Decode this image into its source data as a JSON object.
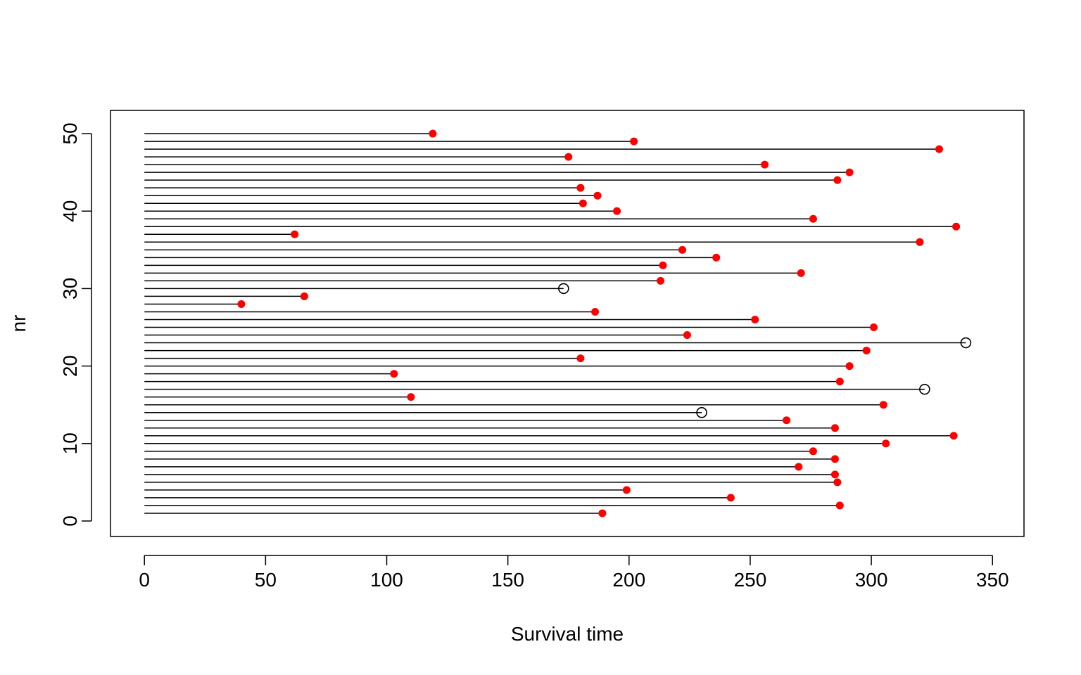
{
  "chart_data": {
    "type": "scatter",
    "title": "",
    "xlabel": "Survival time",
    "ylabel": "nr",
    "xlim": [
      -14,
      363
    ],
    "ylim": [
      -2,
      53
    ],
    "xticks": [
      0,
      50,
      100,
      150,
      200,
      250,
      300,
      350
    ],
    "yticks": [
      0,
      10,
      20,
      30,
      40,
      50
    ],
    "grid": false,
    "legend": "none",
    "colors": {
      "event": "#ff0000",
      "censored": "#000000",
      "line": "#000000"
    },
    "series": [
      {
        "marker": "filled-circle",
        "points": [
          {
            "nr": 1,
            "time": 189
          },
          {
            "nr": 2,
            "time": 287
          },
          {
            "nr": 3,
            "time": 242
          },
          {
            "nr": 4,
            "time": 199
          },
          {
            "nr": 5,
            "time": 286
          },
          {
            "nr": 6,
            "time": 285
          },
          {
            "nr": 7,
            "time": 270
          },
          {
            "nr": 8,
            "time": 285
          },
          {
            "nr": 9,
            "time": 276
          },
          {
            "nr": 10,
            "time": 306
          },
          {
            "nr": 11,
            "time": 334
          },
          {
            "nr": 12,
            "time": 285
          },
          {
            "nr": 13,
            "time": 265
          },
          {
            "nr": 15,
            "time": 305
          },
          {
            "nr": 16,
            "time": 110
          },
          {
            "nr": 18,
            "time": 287
          },
          {
            "nr": 19,
            "time": 103
          },
          {
            "nr": 20,
            "time": 291
          },
          {
            "nr": 21,
            "time": 180
          },
          {
            "nr": 22,
            "time": 298
          },
          {
            "nr": 24,
            "time": 224
          },
          {
            "nr": 25,
            "time": 301
          },
          {
            "nr": 26,
            "time": 252
          },
          {
            "nr": 27,
            "time": 186
          },
          {
            "nr": 28,
            "time": 40
          },
          {
            "nr": 29,
            "time": 66
          },
          {
            "nr": 31,
            "time": 213
          },
          {
            "nr": 32,
            "time": 271
          },
          {
            "nr": 33,
            "time": 214
          },
          {
            "nr": 34,
            "time": 236
          },
          {
            "nr": 35,
            "time": 222
          },
          {
            "nr": 36,
            "time": 320
          },
          {
            "nr": 37,
            "time": 62
          },
          {
            "nr": 38,
            "time": 335
          },
          {
            "nr": 39,
            "time": 276
          },
          {
            "nr": 40,
            "time": 195
          },
          {
            "nr": 41,
            "time": 181
          },
          {
            "nr": 42,
            "time": 187
          },
          {
            "nr": 43,
            "time": 180
          },
          {
            "nr": 44,
            "time": 286
          },
          {
            "nr": 45,
            "time": 291
          },
          {
            "nr": 46,
            "time": 256
          },
          {
            "nr": 47,
            "time": 175
          },
          {
            "nr": 48,
            "time": 328
          },
          {
            "nr": 49,
            "time": 202
          },
          {
            "nr": 50,
            "time": 119
          }
        ]
      },
      {
        "marker": "open-circle",
        "points": [
          {
            "nr": 14,
            "time": 230
          },
          {
            "nr": 17,
            "time": 322
          },
          {
            "nr": 23,
            "time": 339
          },
          {
            "nr": 30,
            "time": 173
          }
        ]
      }
    ]
  }
}
